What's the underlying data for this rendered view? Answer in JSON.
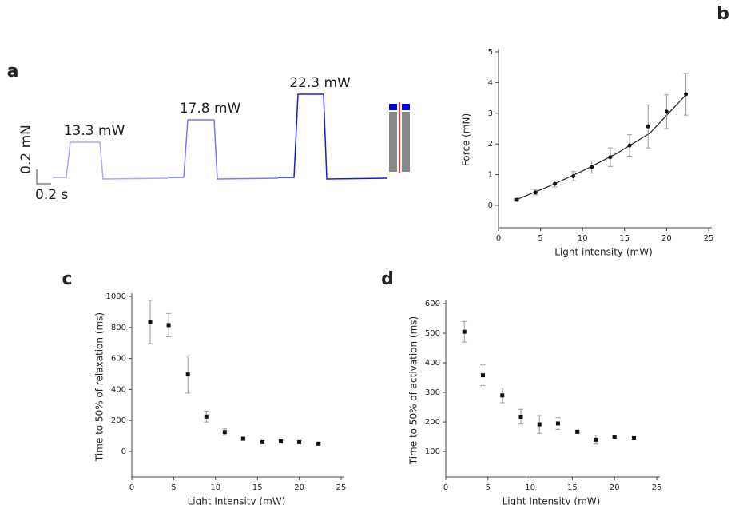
{
  "chart_data": [
    {
      "type": "trace",
      "panel_label": "a",
      "annotations": [
        "13.3 mW",
        "17.8 mW",
        "22.3 mW"
      ],
      "colors": [
        "#a8a8ff",
        "#7878ff",
        "#1a1ae0"
      ],
      "scale_bar_y": "0.2 mN",
      "scale_bar_x": "0.2 s"
    },
    {
      "type": "scatter",
      "panel_label": "b",
      "xlabel": "Light intensity (mW)",
      "ylabel": "Force (mN)",
      "x": [
        2.2,
        4.4,
        6.7,
        8.9,
        11.1,
        13.3,
        15.6,
        17.8,
        20,
        22.3
      ],
      "values": [
        0.18,
        0.42,
        0.7,
        0.95,
        1.25,
        1.57,
        1.95,
        2.57,
        3.05,
        3.62
      ],
      "errors": [
        0.05,
        0.08,
        0.1,
        0.15,
        0.2,
        0.3,
        0.35,
        0.7,
        0.55,
        0.68
      ],
      "fit_x": [
        2,
        6,
        10,
        14,
        18,
        22.3
      ],
      "fit_values": [
        0.17,
        0.62,
        1.12,
        1.68,
        2.35,
        3.6
      ],
      "xlim": [
        0,
        25
      ],
      "xticks": [
        0,
        5,
        10,
        15,
        20,
        25
      ],
      "ylim": [
        -0.73,
        5
      ],
      "yticks": [
        0,
        1,
        2,
        3,
        4,
        5
      ]
    },
    {
      "type": "scatter",
      "panel_label": "c",
      "xlabel": "Light Intensity (mW)",
      "ylabel": "Time to 50% of relaxation (ms)",
      "x": [
        2.2,
        4.4,
        6.7,
        8.9,
        11.1,
        13.3,
        15.6,
        17.8,
        20,
        22.3
      ],
      "values": [
        835,
        815,
        497,
        225,
        125,
        82,
        60,
        65,
        60,
        50
      ],
      "errors": [
        140,
        75,
        120,
        35,
        20,
        10,
        8,
        8,
        8,
        8
      ],
      "xlim": [
        0,
        25
      ],
      "xticks": [
        0,
        5,
        10,
        15,
        20,
        25
      ],
      "ylim": [
        -165,
        1000
      ],
      "yticks": [
        0,
        200,
        400,
        600,
        800,
        1000
      ]
    },
    {
      "type": "scatter",
      "panel_label": "d",
      "xlabel": "Light Intensity (mW)",
      "ylabel": "Time to 50% of activation (ms)",
      "x": [
        2.2,
        4.4,
        6.7,
        8.9,
        11.1,
        13.3,
        15.6,
        17.8,
        20,
        22.3
      ],
      "values": [
        505,
        358,
        290,
        218,
        192,
        195,
        167,
        140,
        150,
        145
      ],
      "errors": [
        35,
        35,
        25,
        25,
        30,
        20,
        5,
        15,
        5,
        5
      ],
      "xlim": [
        0,
        25
      ],
      "xticks": [
        0,
        5,
        10,
        15,
        20,
        25
      ],
      "ylim": [
        14,
        600
      ],
      "yticks": [
        100,
        200,
        300,
        400,
        500,
        600
      ]
    }
  ]
}
